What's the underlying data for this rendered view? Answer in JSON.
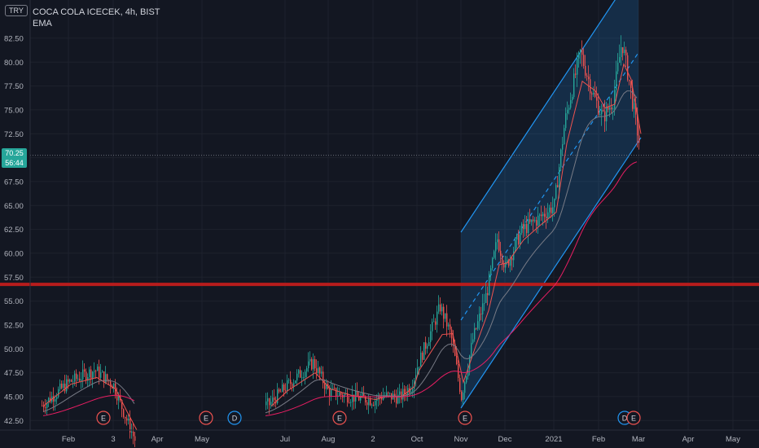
{
  "header": {
    "currency": "TRY",
    "title": "COCA COLA ICECEK, 4h, BIST",
    "indicator": "EMA"
  },
  "current_price": {
    "price": "70.25",
    "countdown": "56:44"
  },
  "colors": {
    "background": "#131722",
    "grid": "#1e222d",
    "axis_text": "#b2b5be",
    "up": "#26a69a",
    "down": "#ef5350",
    "ema_fast": "#ef5350",
    "ema_mid": "#787b86",
    "ema_slow": "#e91e63",
    "channel": "#2196f3",
    "resistance": "#b71c1c",
    "earnings": "#ef5350",
    "dividend": "#2196f3"
  },
  "chart_data": {
    "type": "candlestick",
    "x": [
      "Feb",
      "3",
      "Apr",
      "May",
      "Jul",
      "Aug",
      "2",
      "Oct",
      "Nov",
      "Dec",
      "2021",
      "Feb",
      "Mar",
      "Apr",
      "May"
    ],
    "y_ticks": [
      42.5,
      45.0,
      47.5,
      50.0,
      52.5,
      55.0,
      57.5,
      60.0,
      62.5,
      65.0,
      67.5,
      70.0,
      72.5,
      75.0,
      77.5,
      80.0,
      82.5
    ],
    "ylim": [
      41.5,
      86.5
    ],
    "grid": true,
    "price_path": [
      [
        "Feb-early",
        44.0
      ],
      [
        "Feb",
        46.5
      ],
      [
        "Feb-late",
        47.8
      ],
      [
        "3",
        46.2
      ],
      [
        "3-late",
        43.2
      ],
      [
        "Apr",
        40.5
      ],
      [
        "Jul-early",
        44.2
      ],
      [
        "Jul",
        46.0
      ],
      [
        "Jul-late",
        48.6
      ],
      [
        "Aug",
        45.5
      ],
      [
        "Aug-mid",
        45.0
      ],
      [
        "2",
        44.6
      ],
      [
        "2-late",
        45.1
      ],
      [
        "Sep",
        44.9
      ],
      [
        "Oct-early",
        46.2
      ],
      [
        "Oct",
        48.2
      ],
      [
        "Oct-mid",
        54.4
      ],
      [
        "Oct-late",
        51.5
      ],
      [
        "Nov",
        45.0
      ],
      [
        "Nov-mid",
        51.0
      ],
      [
        "Nov-late",
        55.8
      ],
      [
        "Dec-early",
        61.5
      ],
      [
        "Dec",
        58.5
      ],
      [
        "Dec-mid",
        62.4
      ],
      [
        "Dec-late",
        63.6
      ],
      [
        "2021",
        65.0
      ],
      [
        "2021-late",
        73.8
      ],
      [
        "Jan-late",
        81.0
      ],
      [
        "Feb-early",
        76.5
      ],
      [
        "Feb",
        74.2
      ],
      [
        "Feb-mid",
        76.0
      ],
      [
        "Feb-late",
        82.2
      ],
      [
        "Mar-early",
        78.0
      ],
      [
        "Mar",
        71.7
      ]
    ],
    "ema_fast": [
      [
        44.0
      ],
      [
        46.3
      ],
      [
        47.0
      ],
      [
        45.8
      ],
      [
        43.6
      ],
      [
        41.5
      ],
      [
        44.0
      ],
      [
        45.6
      ],
      [
        47.5
      ],
      [
        45.8
      ],
      [
        45.1
      ],
      [
        44.7
      ],
      [
        45.0
      ],
      [
        45.0
      ],
      [
        46.0
      ],
      [
        47.8
      ],
      [
        51.5
      ],
      [
        51.6
      ],
      [
        46.5
      ],
      [
        50.0
      ],
      [
        54.0
      ],
      [
        58.8
      ],
      [
        59.0
      ],
      [
        61.4
      ],
      [
        62.9
      ],
      [
        64.3
      ],
      [
        71.5
      ],
      [
        78.0
      ],
      [
        77.0
      ],
      [
        75.2
      ],
      [
        75.6
      ],
      [
        79.8
      ],
      [
        78.2
      ],
      [
        72.5
      ]
    ],
    "ema_slow_start": 43.0,
    "ema_slow_end": 70.0,
    "channel": {
      "lower_start": {
        "x": "Nov",
        "price": 43.8
      },
      "lower_end": {
        "x": "Mar",
        "price": 71.8
      },
      "upper_start": {
        "x": "Nov",
        "price": 62.2
      },
      "upper_end": {
        "x": "Mar",
        "price": 90.2
      }
    },
    "horizontal_line": 56.75,
    "events": [
      {
        "type": "E",
        "x": "3"
      },
      {
        "type": "E",
        "x": "May"
      },
      {
        "type": "D",
        "x": "May-late"
      },
      {
        "type": "E",
        "x": "Aug"
      },
      {
        "type": "E",
        "x": "Nov"
      },
      {
        "type": "D",
        "x": "Feb-late"
      },
      {
        "type": "E",
        "x": "Feb-late"
      }
    ],
    "last_price": 70.25
  }
}
